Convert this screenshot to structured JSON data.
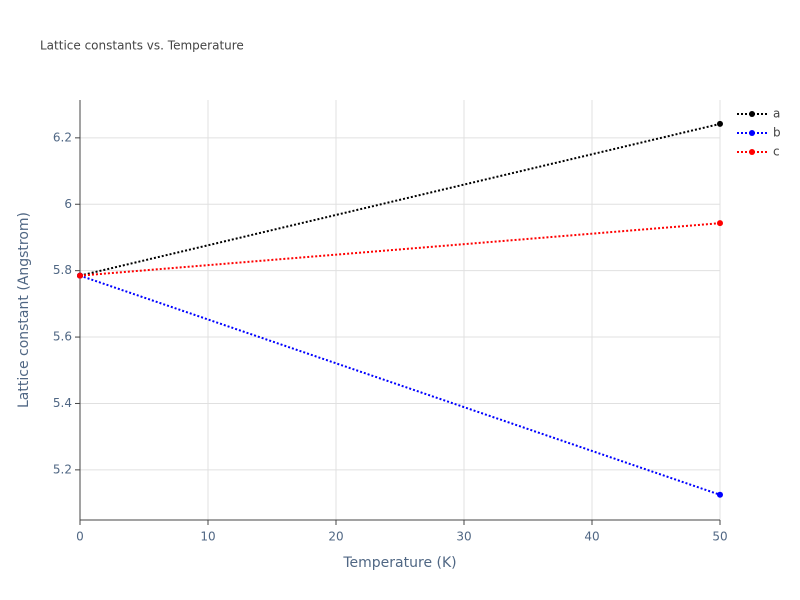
{
  "chart_data": {
    "type": "line",
    "title": "Lattice constants vs. Temperature",
    "xlabel": "Temperature (K)",
    "ylabel": "Lattice constant (Angstrom)",
    "x": [
      0,
      50
    ],
    "series": [
      {
        "name": "a",
        "color": "#000000",
        "values": [
          5.785,
          6.242
        ]
      },
      {
        "name": "b",
        "color": "#0000ff",
        "values": [
          5.785,
          5.125
        ]
      },
      {
        "name": "c",
        "color": "#ff0000",
        "values": [
          5.785,
          5.943
        ]
      }
    ],
    "xlim": [
      0,
      50
    ],
    "xticks": [
      0,
      10,
      20,
      30,
      40,
      50
    ],
    "ylim": [
      5.049,
      6.314
    ],
    "yticks": [
      5.2,
      5.4,
      5.6,
      5.8,
      6,
      6.2
    ],
    "grid": true,
    "legend": "top-right",
    "line_style": "dotted"
  }
}
